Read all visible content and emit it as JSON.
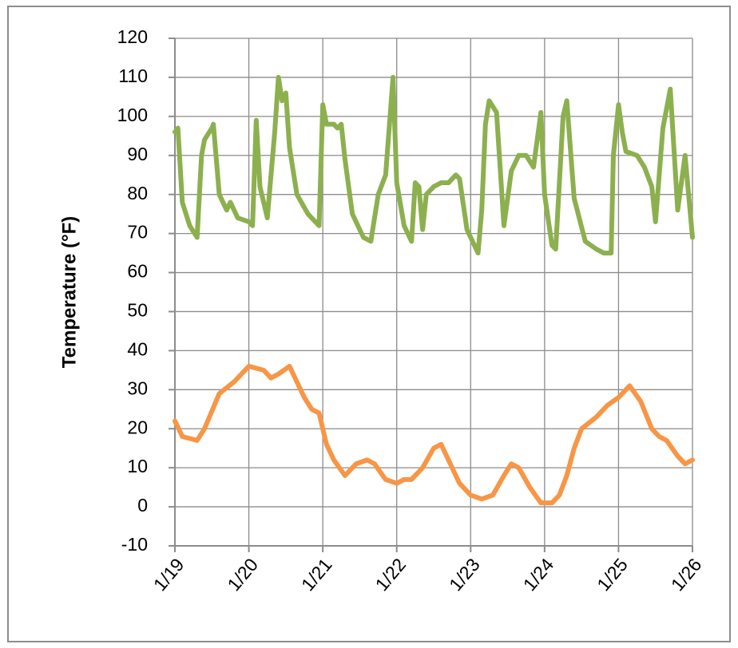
{
  "chart_data": {
    "type": "line",
    "y_label": "Temperature (°F)",
    "xlim": [
      0,
      7
    ],
    "xticks": [
      {
        "value": 0,
        "label": "1/19"
      },
      {
        "value": 1,
        "label": "1/20"
      },
      {
        "value": 2,
        "label": "1/21"
      },
      {
        "value": 3,
        "label": "1/22"
      },
      {
        "value": 4,
        "label": "1/23"
      },
      {
        "value": 5,
        "label": "1/24"
      },
      {
        "value": 6,
        "label": "1/25"
      },
      {
        "value": 7,
        "label": "1/26"
      }
    ],
    "ylim": [
      -10,
      120
    ],
    "yticks": [
      -10,
      0,
      10,
      20,
      30,
      40,
      50,
      60,
      70,
      80,
      90,
      100,
      110,
      120
    ],
    "grid": true,
    "series": [
      {
        "color": "#8db04f",
        "x": [
          0,
          0.04,
          0.1,
          0.2,
          0.3,
          0.36,
          0.4,
          0.5,
          0.52,
          0.6,
          0.7,
          0.75,
          0.85,
          1.0,
          1.05,
          1.1,
          1.15,
          1.25,
          1.35,
          1.4,
          1.45,
          1.5,
          1.55,
          1.65,
          1.8,
          1.95,
          2.0,
          2.05,
          2.15,
          2.2,
          2.25,
          2.3,
          2.4,
          2.55,
          2.65,
          2.75,
          2.85,
          2.95,
          3.0,
          3.1,
          3.2,
          3.25,
          3.3,
          3.35,
          3.4,
          3.5,
          3.6,
          3.7,
          3.8,
          3.85,
          3.95,
          4.1,
          4.15,
          4.2,
          4.25,
          4.35,
          4.45,
          4.55,
          4.65,
          4.75,
          4.85,
          4.95,
          5.0,
          5.1,
          5.15,
          5.25,
          5.3,
          5.4,
          5.55,
          5.7,
          5.8,
          5.9,
          5.93,
          6.0,
          6.05,
          6.1,
          6.25,
          6.35,
          6.45,
          6.5,
          6.6,
          6.7,
          6.8,
          6.9,
          7.0
        ],
        "values": [
          96,
          97,
          78,
          72,
          69,
          90,
          94,
          97,
          98,
          80,
          76,
          78,
          74,
          73,
          72,
          99,
          82,
          74,
          96,
          110,
          104,
          106,
          92,
          80,
          75,
          72,
          103,
          98,
          98,
          97,
          98,
          89,
          75,
          69,
          68,
          80,
          85,
          110,
          83,
          72,
          68,
          83,
          82,
          71,
          80,
          82,
          83,
          83,
          85,
          84,
          71,
          65,
          76,
          98,
          104,
          101,
          72,
          86,
          90,
          90,
          87,
          101,
          80,
          67,
          66,
          100,
          104,
          79,
          68,
          66,
          65,
          65,
          90,
          103,
          96,
          91,
          90,
          87,
          82,
          73,
          97,
          107,
          76,
          90,
          69
        ]
      },
      {
        "color": "#f79646",
        "x": [
          0,
          0.1,
          0.3,
          0.4,
          0.6,
          0.8,
          0.9,
          1.0,
          1.2,
          1.3,
          1.4,
          1.55,
          1.6,
          1.75,
          1.85,
          1.95,
          2.05,
          2.15,
          2.3,
          2.45,
          2.6,
          2.7,
          2.85,
          3.0,
          3.1,
          3.2,
          3.35,
          3.5,
          3.6,
          3.7,
          3.85,
          4.0,
          4.15,
          4.3,
          4.45,
          4.55,
          4.65,
          4.8,
          4.95,
          5.1,
          5.2,
          5.3,
          5.4,
          5.5,
          5.7,
          5.85,
          6.0,
          6.15,
          6.3,
          6.45,
          6.55,
          6.65,
          6.8,
          6.9,
          7.0
        ],
        "values": [
          22,
          18,
          17,
          20,
          29,
          32,
          34,
          36,
          35,
          33,
          34,
          36,
          34,
          28,
          25,
          24,
          16,
          12,
          8,
          11,
          12,
          11,
          7,
          6,
          7,
          7,
          10,
          15,
          16,
          12,
          6,
          3,
          2,
          3,
          8,
          11,
          10,
          5,
          1,
          1,
          3,
          8,
          15,
          20,
          23,
          26,
          28,
          31,
          27,
          20,
          18,
          17,
          13,
          11,
          12
        ]
      }
    ]
  }
}
